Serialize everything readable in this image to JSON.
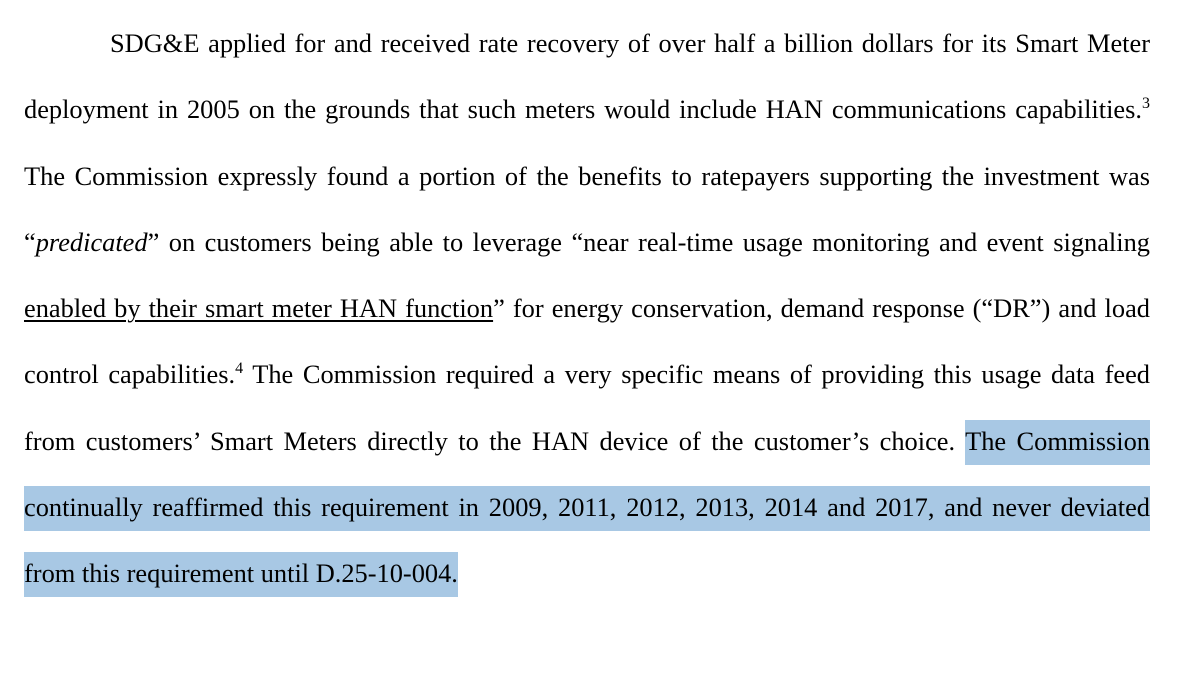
{
  "paragraph": {
    "s1": "SDG&E applied for and received rate recovery of over half a billion dollars for its Smart Meter deployment in 2005 on the grounds that such meters would include HAN communications capabilities.",
    "fn3": "3",
    "s2a": " The Commission expressly found a portion of the benefits to ratepayers supporting the investment was “",
    "s2_italic": "predicated",
    "s2b": "” on customers being able to leverage “near real-time usage monitoring and event signaling ",
    "s2_underline": "enabled by their smart meter HAN function",
    "s2c": "” for energy conservation, demand response (“DR”) and load control capabilities.",
    "fn4": "4",
    "s3": " The Commission required a very specific means of providing this usage data feed from customers’ Smart Meters directly to the HAN device of the customer’s choice. ",
    "s4_highlighted": "The Commission continually reaffirmed this requirement in 2009, 2011, 2012, 2013, 2014 and 2017, and never deviated from this requirement until D.25-10-004."
  },
  "colors": {
    "text": "#000000",
    "highlight": "#a8c8e4",
    "background": "#ffffff"
  }
}
